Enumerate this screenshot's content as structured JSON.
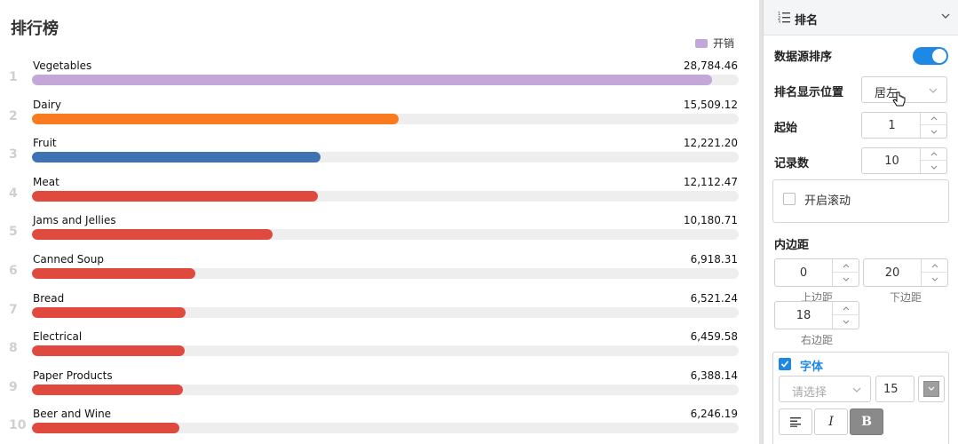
{
  "chart_data": {
    "type": "bar",
    "title": "排行榜",
    "legend": [
      {
        "name": "开销",
        "color": "#c3a7d8"
      }
    ],
    "legend_position": "top-right",
    "orientation": "horizontal",
    "categories": [
      "Vegetables",
      "Dairy",
      "Fruit",
      "Meat",
      "Jams and Jellies",
      "Canned Soup",
      "Bread",
      "Electrical",
      "Paper Products",
      "Beer and Wine"
    ],
    "values": [
      28784.46,
      15509.12,
      12221.2,
      12112.47,
      10180.71,
      6918.31,
      6521.24,
      6459.58,
      6388.14,
      6246.19
    ],
    "value_labels": [
      "28,784.46",
      "15,509.12",
      "12,221.20",
      "12,112.47",
      "10,180.71",
      "6,918.31",
      "6,521.24",
      "6,459.58",
      "6,388.14",
      "6,246.19"
    ],
    "ranks": [
      "1",
      "2",
      "3",
      "4",
      "5",
      "6",
      "7",
      "8",
      "9",
      "10"
    ],
    "colors": [
      "#c3a7d8",
      "#f97a1f",
      "#3e72b3",
      "#e04a3e",
      "#e04a3e",
      "#e04a3e",
      "#e04a3e",
      "#e04a3e",
      "#e04a3e",
      "#e04a3e"
    ],
    "xlim": [
      0,
      28784.46
    ]
  },
  "settings": {
    "section_title": "排名",
    "data_source_sort": {
      "label": "数据源排序",
      "enabled": true
    },
    "rank_position": {
      "label": "排名显示位置",
      "value": "居左"
    },
    "start": {
      "label": "起始",
      "value": "1"
    },
    "record_count": {
      "label": "记录数",
      "value": "10"
    },
    "scroll": {
      "label": "开启滚动",
      "checked": false
    },
    "padding": {
      "label": "内边距",
      "top": {
        "value": "0",
        "caption": "上边距"
      },
      "bottom": {
        "value": "20",
        "caption": "下边距"
      },
      "right": {
        "value": "18",
        "caption": "右边距"
      }
    },
    "font": {
      "label": "字体",
      "checked": true,
      "family_placeholder": "请选择",
      "size": "15",
      "italic_label": "I",
      "bold_label": "B"
    }
  },
  "colors": {
    "accent": "#1e88e5",
    "track": "#eeeeee"
  },
  "icons": [
    "list-icon",
    "chevron-down-icon",
    "pointer-cursor-icon",
    "align-left-icon",
    "color-picker-icon",
    "check-icon"
  ]
}
